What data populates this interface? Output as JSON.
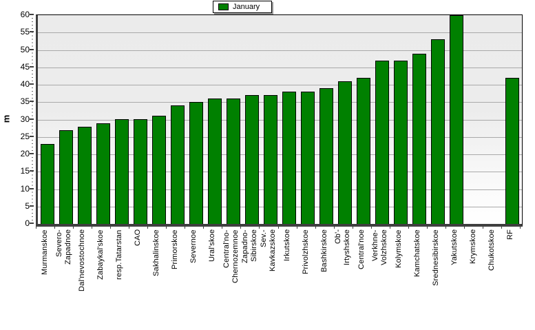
{
  "chart_data": {
    "type": "bar",
    "title": "",
    "xlabel": "",
    "ylabel": "m",
    "ylim": [
      0,
      60
    ],
    "ytick_step": 5,
    "grid": true,
    "legend_position": "top-center",
    "categories": [
      "Murmanskoe",
      "Severo-\nZapadnoe",
      "Dal'nevostochnoe",
      "Zabaykal'skoe",
      "resp.Tatarstan",
      "CAO",
      "Sakhalinskoe",
      "Primorskoe",
      "Severnoe",
      "Ural'skoe",
      "Central'no-\nChernozemnoe",
      "Zapadno-\nSibirskoe",
      "Sev.-\nKavkazskoe",
      "Irkutskoe",
      "Privolzhskoe",
      "Bashkirskoe",
      "Ob'-\nIrtyshskoe",
      "Central'noe",
      "Verkhne-\nVolzhskoe",
      "Kolymskoe",
      "Kamchatskoe",
      "Srednesibirskoe",
      "Yakutskoe",
      "Krymskoe",
      "Chukotskoe",
      "RF"
    ],
    "series": [
      {
        "name": "January",
        "color": "#008000",
        "values": [
          23,
          27,
          28,
          29,
          30,
          30,
          31,
          34,
          35,
          36,
          36,
          37,
          37,
          38,
          38,
          39,
          41,
          42,
          47,
          47,
          49,
          53,
          60,
          0,
          0,
          42
        ]
      }
    ]
  },
  "colors": {
    "bar_fill": "#008000",
    "bar_border": "#000000",
    "gridline": "#a9a9a9",
    "axis": "#3f3f3f",
    "plot_bg_top": "#ebebeb",
    "plot_bg_bottom": "#ffffff",
    "legend_shadow": "#9a9a9a",
    "text": "#000000"
  }
}
